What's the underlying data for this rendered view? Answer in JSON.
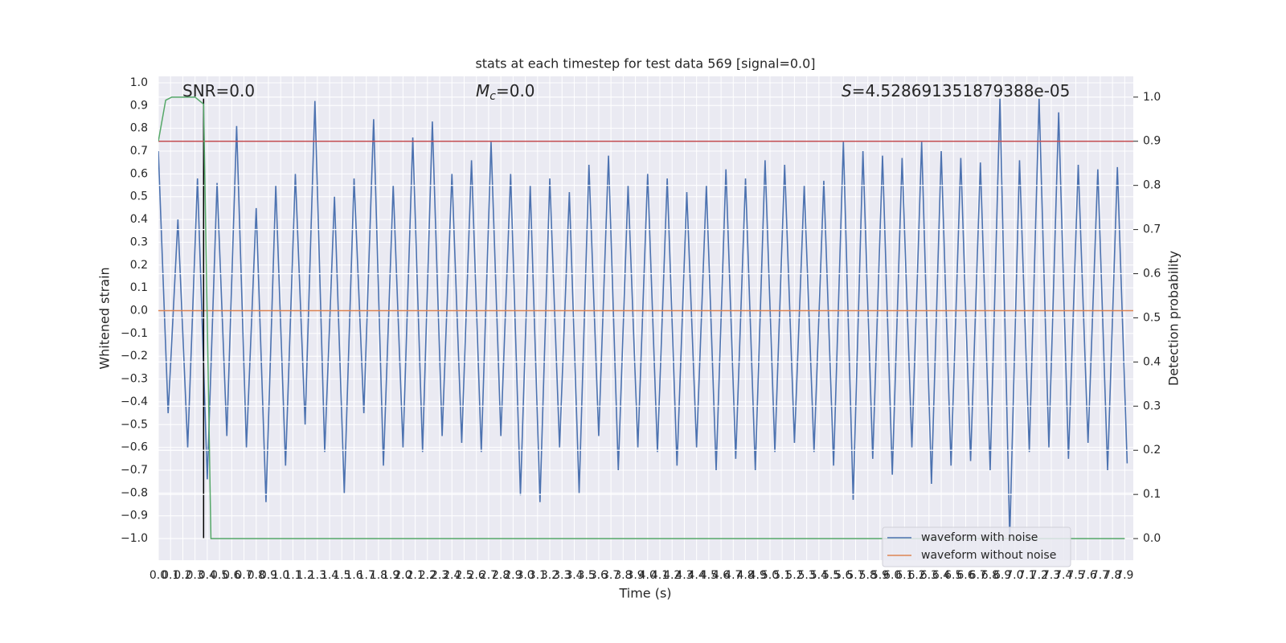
{
  "chart_data": {
    "type": "line",
    "title": "stats at each timestep for test data 569 [signal=0.0]",
    "x_label": "Time (s)",
    "y_label": "Whitened strain",
    "y2_label": "Detection probability",
    "annotations": [
      {
        "parts": [
          "SNR=0.0"
        ]
      },
      {
        "parts": [
          "M",
          "c",
          "=0.0"
        ]
      },
      {
        "parts": [
          "S",
          "=4.528691351879388e-05"
        ]
      }
    ],
    "series": [
      {
        "name": "waveform with noise",
        "color": "#4c72b0",
        "x": [
          0,
          0.08,
          0.16,
          0.24,
          0.32,
          0.4,
          0.48,
          0.56,
          0.64,
          0.72,
          0.8,
          0.88,
          0.96,
          1.04,
          1.12,
          1.2,
          1.28,
          1.36,
          1.44,
          1.52,
          1.6,
          1.68,
          1.76,
          1.84,
          1.92,
          2,
          2.08,
          2.16,
          2.24,
          2.32,
          2.4,
          2.48,
          2.56,
          2.64,
          2.72,
          2.8,
          2.88,
          2.96,
          3.04,
          3.12,
          3.2,
          3.28,
          3.36,
          3.44,
          3.52,
          3.6,
          3.68,
          3.76,
          3.84,
          3.92,
          4,
          4.08,
          4.16,
          4.24,
          4.32,
          4.4,
          4.48,
          4.56,
          4.64,
          4.72,
          4.8,
          4.88,
          4.96,
          5.04,
          5.12,
          5.2,
          5.28,
          5.36,
          5.44,
          5.52,
          5.6,
          5.68,
          5.76,
          5.84,
          5.92,
          6,
          6.08,
          6.16,
          6.24,
          6.32,
          6.4,
          6.48,
          6.56,
          6.64,
          6.72,
          6.8,
          6.88,
          6.96,
          7.04,
          7.12,
          7.2,
          7.28,
          7.36,
          7.44,
          7.52,
          7.6,
          7.68,
          7.76,
          7.84,
          7.92
        ],
        "values": [
          0.7,
          -0.45,
          0.4,
          -0.6,
          0.58,
          -0.74,
          0.56,
          -0.55,
          0.81,
          -0.6,
          0.45,
          -0.84,
          0.55,
          -0.68,
          0.6,
          -0.5,
          0.92,
          -0.62,
          0.5,
          -0.8,
          0.58,
          -0.45,
          0.84,
          -0.68,
          0.55,
          -0.6,
          0.76,
          -0.62,
          0.83,
          -0.55,
          0.6,
          -0.58,
          0.66,
          -0.62,
          0.74,
          -0.55,
          0.6,
          -0.81,
          0.55,
          -0.84,
          0.58,
          -0.6,
          0.52,
          -0.8,
          0.64,
          -0.55,
          0.68,
          -0.7,
          0.55,
          -0.6,
          0.6,
          -0.62,
          0.58,
          -0.68,
          0.52,
          -0.6,
          0.55,
          -0.7,
          0.62,
          -0.65,
          0.58,
          -0.7,
          0.66,
          -0.62,
          0.64,
          -0.58,
          0.55,
          -0.62,
          0.57,
          -0.68,
          0.74,
          -0.83,
          0.7,
          -0.65,
          0.68,
          -0.72,
          0.67,
          -0.6,
          0.74,
          -0.76,
          0.7,
          -0.68,
          0.67,
          -0.66,
          0.65,
          -0.7,
          0.93,
          -1.0,
          0.66,
          -0.62,
          0.93,
          -0.6,
          0.87,
          -0.65,
          0.64,
          -0.58,
          0.62,
          -0.7,
          0.63,
          -0.67
        ]
      },
      {
        "name": "waveform without noise",
        "color": "#dd8452",
        "x": [
          0,
          7.97
        ],
        "values": [
          0,
          0
        ]
      }
    ],
    "probability": {
      "axis": "y2",
      "color": "#55a868",
      "x": [
        0,
        0.06,
        0.11,
        0.3,
        0.37,
        0.43,
        7.9
      ],
      "values": [
        0.9,
        0.993,
        1.0,
        1.0,
        0.984,
        0,
        0
      ]
    },
    "threshold": {
      "axis": "y2",
      "color": "#c44e52",
      "value": 0.9
    },
    "marker_line": {
      "color": "#000000",
      "x": 0.37,
      "ymin": -1.0,
      "ymax": 0.93
    },
    "xlim": [
      0,
      7.97
    ],
    "ylim": [
      -1.095,
      1.028
    ],
    "y2lim": [
      -0.049,
      1.047
    ],
    "xticks": [
      {
        "value": 0,
        "label": "0.0"
      },
      0.1,
      0.2,
      0.3,
      0.4,
      0.5,
      0.6,
      0.7,
      0.8,
      0.9,
      {
        "value": 1,
        "label": "1.0"
      },
      1.1,
      1.2,
      1.3,
      1.4,
      1.5,
      1.6,
      1.7,
      1.8,
      1.9,
      {
        "value": 2,
        "label": "2.0"
      },
      2.1,
      2.2,
      2.3,
      2.4,
      2.5,
      2.6,
      2.7,
      2.8,
      2.9,
      {
        "value": 3,
        "label": "3.0"
      },
      3.1,
      3.2,
      3.3,
      3.4,
      3.5,
      3.6,
      3.7,
      3.8,
      3.9,
      {
        "value": 4,
        "label": "4.0"
      },
      4.1,
      4.2,
      4.3,
      4.4,
      4.5,
      4.6,
      4.7,
      4.8,
      4.9,
      {
        "value": 5,
        "label": "5.0"
      },
      5.1,
      5.2,
      5.3,
      5.4,
      5.5,
      5.6,
      5.7,
      5.8,
      5.9,
      {
        "value": 6,
        "label": "6.0"
      },
      6.1,
      6.2,
      6.3,
      6.4,
      6.5,
      6.6,
      6.7,
      6.8,
      6.9,
      {
        "value": 7,
        "label": "7.0"
      },
      7.1,
      7.2,
      7.3,
      7.4,
      7.5,
      7.6,
      7.7,
      7.8,
      7.9
    ],
    "yticks": [
      {
        "value": -1,
        "label": "−1.0"
      },
      {
        "value": -0.9,
        "label": "−0.9"
      },
      {
        "value": -0.8,
        "label": "−0.8"
      },
      {
        "value": -0.7,
        "label": "−0.7"
      },
      {
        "value": -0.6,
        "label": "−0.6"
      },
      {
        "value": -0.5,
        "label": "−0.5"
      },
      {
        "value": -0.4,
        "label": "−0.4"
      },
      {
        "value": -0.3,
        "label": "−0.3"
      },
      {
        "value": -0.2,
        "label": "−0.2"
      },
      {
        "value": -0.1,
        "label": "−0.1"
      },
      {
        "value": 0,
        "label": "0.0"
      },
      0.1,
      0.2,
      0.3,
      0.4,
      0.5,
      0.6,
      0.7,
      0.8,
      0.9,
      {
        "value": 1,
        "label": "1.0"
      }
    ],
    "y2ticks": [
      {
        "value": 0,
        "label": "0.0"
      },
      0.1,
      0.2,
      0.3,
      0.4,
      0.5,
      0.6,
      0.7,
      0.8,
      0.9,
      {
        "value": 1,
        "label": "1.0"
      }
    ],
    "grid": true,
    "legend": "lower right"
  }
}
